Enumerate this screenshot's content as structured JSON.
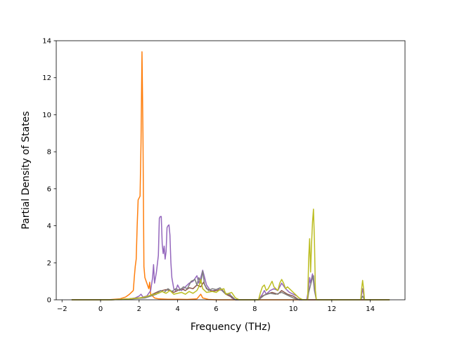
{
  "chart_data": {
    "type": "line",
    "title": "",
    "xlabel": "Frequency (THz)",
    "ylabel": "Partial Density of States",
    "xlim": [
      -2.3,
      15.8
    ],
    "ylim": [
      0,
      14
    ],
    "xticks": [
      -2,
      0,
      2,
      4,
      6,
      8,
      10,
      12,
      14
    ],
    "yticks": [
      0,
      2,
      4,
      6,
      8,
      10,
      12,
      14
    ],
    "grid": false,
    "legend": "none",
    "series": [
      {
        "color": "#ff7f0e",
        "points": [
          [
            -1.5,
            0
          ],
          [
            0,
            0
          ],
          [
            0.5,
            0.01
          ],
          [
            1.0,
            0.05
          ],
          [
            1.3,
            0.15
          ],
          [
            1.5,
            0.3
          ],
          [
            1.6,
            0.4
          ],
          [
            1.7,
            0.5
          ],
          [
            1.75,
            1.2
          ],
          [
            1.8,
            1.8
          ],
          [
            1.85,
            2.2
          ],
          [
            1.9,
            4.0
          ],
          [
            1.95,
            5.4
          ],
          [
            2.0,
            5.5
          ],
          [
            2.05,
            5.6
          ],
          [
            2.1,
            8.5
          ],
          [
            2.15,
            13.4
          ],
          [
            2.2,
            9.0
          ],
          [
            2.25,
            1.8
          ],
          [
            2.3,
            1.2
          ],
          [
            2.4,
            0.9
          ],
          [
            2.5,
            0.6
          ],
          [
            2.55,
            0.95
          ],
          [
            2.6,
            0.3
          ],
          [
            2.8,
            0.1
          ],
          [
            3.0,
            0.05
          ],
          [
            3.5,
            0.03
          ],
          [
            4.0,
            0.03
          ],
          [
            4.5,
            0.02
          ],
          [
            5.0,
            0.05
          ],
          [
            5.2,
            0.3
          ],
          [
            5.3,
            0.1
          ],
          [
            5.6,
            0.02
          ],
          [
            6.0,
            0
          ],
          [
            15,
            0
          ]
        ]
      },
      {
        "color": "#9467bd",
        "points": [
          [
            -1.5,
            0
          ],
          [
            0.5,
            0
          ],
          [
            1.0,
            0.02
          ],
          [
            1.5,
            0.05
          ],
          [
            1.8,
            0.1
          ],
          [
            2.0,
            0.2
          ],
          [
            2.1,
            0.3
          ],
          [
            2.2,
            0.15
          ],
          [
            2.4,
            0.2
          ],
          [
            2.6,
            0.5
          ],
          [
            2.7,
            1.2
          ],
          [
            2.75,
            1.9
          ],
          [
            2.8,
            0.9
          ],
          [
            2.9,
            1.5
          ],
          [
            3.0,
            2.4
          ],
          [
            3.05,
            4.4
          ],
          [
            3.1,
            4.5
          ],
          [
            3.15,
            4.5
          ],
          [
            3.2,
            3.0
          ],
          [
            3.25,
            2.5
          ],
          [
            3.3,
            2.9
          ],
          [
            3.35,
            2.2
          ],
          [
            3.4,
            2.6
          ],
          [
            3.45,
            3.9
          ],
          [
            3.5,
            4.0
          ],
          [
            3.55,
            4.05
          ],
          [
            3.6,
            3.5
          ],
          [
            3.65,
            2.0
          ],
          [
            3.7,
            1.2
          ],
          [
            3.8,
            0.6
          ],
          [
            3.9,
            0.5
          ],
          [
            4.0,
            0.8
          ],
          [
            4.1,
            0.6
          ],
          [
            4.2,
            0.5
          ],
          [
            4.4,
            0.7
          ],
          [
            4.6,
            0.9
          ],
          [
            4.8,
            1.0
          ],
          [
            5.0,
            1.3
          ],
          [
            5.1,
            0.9
          ],
          [
            5.2,
            1.2
          ],
          [
            5.3,
            1.6
          ],
          [
            5.4,
            1.2
          ],
          [
            5.5,
            0.8
          ],
          [
            5.7,
            0.5
          ],
          [
            5.9,
            0.5
          ],
          [
            6.1,
            0.6
          ],
          [
            6.3,
            0.5
          ],
          [
            6.5,
            0.3
          ],
          [
            6.7,
            0.35
          ],
          [
            6.8,
            0.1
          ],
          [
            7.0,
            0
          ],
          [
            8.2,
            0
          ],
          [
            8.4,
            0.3
          ],
          [
            8.5,
            0.5
          ],
          [
            8.6,
            0.3
          ],
          [
            8.8,
            0.5
          ],
          [
            9.0,
            0.6
          ],
          [
            9.2,
            0.5
          ],
          [
            9.4,
            0.9
          ],
          [
            9.6,
            0.6
          ],
          [
            9.8,
            0.4
          ],
          [
            10.0,
            0.3
          ],
          [
            10.2,
            0.2
          ],
          [
            10.4,
            0
          ],
          [
            10.7,
            0
          ],
          [
            10.8,
            0.6
          ],
          [
            10.85,
            1.2
          ],
          [
            10.9,
            0.9
          ],
          [
            11.0,
            1.4
          ],
          [
            11.05,
            1.0
          ],
          [
            11.1,
            0.5
          ],
          [
            11.2,
            0
          ],
          [
            13.5,
            0
          ],
          [
            13.55,
            0.3
          ],
          [
            13.6,
            0.6
          ],
          [
            13.65,
            0.3
          ],
          [
            13.7,
            0
          ],
          [
            15,
            0
          ]
        ]
      },
      {
        "color": "#8c564b",
        "points": [
          [
            -1.5,
            0
          ],
          [
            0.5,
            0
          ],
          [
            1.0,
            0.02
          ],
          [
            1.5,
            0.05
          ],
          [
            2.0,
            0.1
          ],
          [
            2.2,
            0.12
          ],
          [
            2.5,
            0.2
          ],
          [
            2.8,
            0.35
          ],
          [
            3.0,
            0.45
          ],
          [
            3.2,
            0.5
          ],
          [
            3.4,
            0.55
          ],
          [
            3.6,
            0.5
          ],
          [
            3.8,
            0.4
          ],
          [
            4.0,
            0.5
          ],
          [
            4.2,
            0.6
          ],
          [
            4.4,
            0.5
          ],
          [
            4.6,
            0.65
          ],
          [
            4.8,
            0.6
          ],
          [
            5.0,
            0.8
          ],
          [
            5.2,
            0.7
          ],
          [
            5.35,
            0.95
          ],
          [
            5.5,
            0.6
          ],
          [
            5.8,
            0.45
          ],
          [
            6.0,
            0.5
          ],
          [
            6.3,
            0.55
          ],
          [
            6.5,
            0.3
          ],
          [
            6.8,
            0.15
          ],
          [
            7.0,
            0
          ],
          [
            8.2,
            0
          ],
          [
            8.4,
            0.2
          ],
          [
            8.6,
            0.3
          ],
          [
            8.9,
            0.4
          ],
          [
            9.2,
            0.3
          ],
          [
            9.4,
            0.5
          ],
          [
            9.7,
            0.3
          ],
          [
            10.0,
            0.2
          ],
          [
            10.3,
            0
          ],
          [
            15,
            0
          ]
        ]
      },
      {
        "color": "#7f7f7f",
        "points": [
          [
            -1.5,
            0
          ],
          [
            0.5,
            0
          ],
          [
            1.0,
            0.02
          ],
          [
            1.5,
            0.04
          ],
          [
            2.0,
            0.08
          ],
          [
            2.3,
            0.1
          ],
          [
            2.6,
            0.2
          ],
          [
            2.9,
            0.3
          ],
          [
            3.1,
            0.5
          ],
          [
            3.3,
            0.4
          ],
          [
            3.5,
            0.6
          ],
          [
            3.7,
            0.45
          ],
          [
            3.9,
            0.6
          ],
          [
            4.1,
            0.5
          ],
          [
            4.3,
            0.7
          ],
          [
            4.5,
            0.6
          ],
          [
            4.7,
            1.0
          ],
          [
            4.9,
            1.1
          ],
          [
            5.0,
            0.8
          ],
          [
            5.1,
            1.2
          ],
          [
            5.2,
            0.9
          ],
          [
            5.3,
            1.55
          ],
          [
            5.4,
            0.8
          ],
          [
            5.6,
            0.5
          ],
          [
            5.8,
            0.6
          ],
          [
            6.0,
            0.55
          ],
          [
            6.2,
            0.65
          ],
          [
            6.4,
            0.4
          ],
          [
            6.6,
            0.3
          ],
          [
            6.8,
            0.2
          ],
          [
            7.0,
            0
          ],
          [
            8.2,
            0
          ],
          [
            8.5,
            0.25
          ],
          [
            8.8,
            0.35
          ],
          [
            9.1,
            0.3
          ],
          [
            9.4,
            0.4
          ],
          [
            9.7,
            0.25
          ],
          [
            10.0,
            0.1
          ],
          [
            10.3,
            0
          ],
          [
            10.75,
            0
          ],
          [
            10.8,
            0.4
          ],
          [
            10.9,
            0.8
          ],
          [
            11.0,
            1.2
          ],
          [
            11.05,
            1.3
          ],
          [
            11.1,
            0.6
          ],
          [
            11.2,
            0
          ],
          [
            13.5,
            0
          ],
          [
            13.6,
            0.2
          ],
          [
            13.7,
            0
          ],
          [
            15,
            0
          ]
        ]
      },
      {
        "color": "#bcbd22",
        "points": [
          [
            -1.5,
            0
          ],
          [
            0.5,
            0
          ],
          [
            1.0,
            0.02
          ],
          [
            1.5,
            0.05
          ],
          [
            2.0,
            0.1
          ],
          [
            2.3,
            0.15
          ],
          [
            2.6,
            0.25
          ],
          [
            2.8,
            0.3
          ],
          [
            3.0,
            0.35
          ],
          [
            3.2,
            0.45
          ],
          [
            3.4,
            0.35
          ],
          [
            3.6,
            0.5
          ],
          [
            3.8,
            0.3
          ],
          [
            4.0,
            0.35
          ],
          [
            4.2,
            0.4
          ],
          [
            4.4,
            0.3
          ],
          [
            4.6,
            0.45
          ],
          [
            4.8,
            0.35
          ],
          [
            5.0,
            0.5
          ],
          [
            5.1,
            0.7
          ],
          [
            5.2,
            1.1
          ],
          [
            5.3,
            0.6
          ],
          [
            5.5,
            0.4
          ],
          [
            5.8,
            0.45
          ],
          [
            6.0,
            0.4
          ],
          [
            6.2,
            0.55
          ],
          [
            6.4,
            0.6
          ],
          [
            6.5,
            0.3
          ],
          [
            6.8,
            0.4
          ],
          [
            7.0,
            0.1
          ],
          [
            7.2,
            0
          ],
          [
            8.2,
            0
          ],
          [
            8.3,
            0.4
          ],
          [
            8.4,
            0.7
          ],
          [
            8.5,
            0.8
          ],
          [
            8.6,
            0.5
          ],
          [
            8.7,
            0.6
          ],
          [
            8.8,
            0.8
          ],
          [
            8.9,
            1.0
          ],
          [
            9.0,
            0.7
          ],
          [
            9.1,
            0.6
          ],
          [
            9.2,
            0.5
          ],
          [
            9.3,
            0.9
          ],
          [
            9.4,
            1.1
          ],
          [
            9.5,
            0.9
          ],
          [
            9.6,
            0.6
          ],
          [
            9.7,
            0.7
          ],
          [
            9.9,
            0.5
          ],
          [
            10.1,
            0.3
          ],
          [
            10.3,
            0.1
          ],
          [
            10.5,
            0
          ],
          [
            10.75,
            0
          ],
          [
            10.8,
            2.2
          ],
          [
            10.85,
            3.3
          ],
          [
            10.9,
            1.5
          ],
          [
            10.95,
            3.0
          ],
          [
            11.0,
            4.2
          ],
          [
            11.05,
            4.9
          ],
          [
            11.1,
            3.2
          ],
          [
            11.15,
            0.5
          ],
          [
            11.2,
            0
          ],
          [
            13.5,
            0
          ],
          [
            13.55,
            0.6
          ],
          [
            13.6,
            1.05
          ],
          [
            13.65,
            0.6
          ],
          [
            13.7,
            0
          ],
          [
            15,
            0
          ]
        ]
      }
    ]
  }
}
